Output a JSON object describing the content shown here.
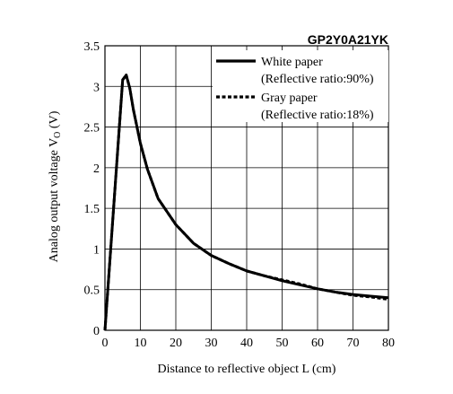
{
  "chart_data": {
    "type": "line",
    "title": "GP2Y0A21YK",
    "xlabel": "Distance to reflective object L (cm)",
    "ylabel": {
      "main": "Analog output voltage V",
      "subscript": "O",
      "unit": " (V)"
    },
    "xlim": [
      0,
      80
    ],
    "ylim": [
      0,
      3.5
    ],
    "x_ticks": [
      0,
      10,
      20,
      30,
      40,
      50,
      60,
      70,
      80
    ],
    "y_ticks": [
      0,
      0.5,
      1,
      1.5,
      2,
      2.5,
      3,
      3.5
    ],
    "x_tick_labels": [
      "0",
      "10",
      "20",
      "30",
      "40",
      "50",
      "60",
      "70",
      "80"
    ],
    "y_tick_labels": [
      "0",
      "0.5",
      "1",
      "1.5",
      "2",
      "2.5",
      "3",
      "3.5"
    ],
    "grid": true,
    "legend_placement": "top-right",
    "series": [
      {
        "name": "White paper",
        "note": "(Reflective ratio:90%)",
        "style": "solid",
        "color": "#000000",
        "points": [
          [
            0,
            0
          ],
          [
            5,
            3.08
          ],
          [
            6,
            3.14
          ],
          [
            7,
            2.98
          ],
          [
            8,
            2.72
          ],
          [
            10,
            2.3
          ],
          [
            12,
            1.98
          ],
          [
            15,
            1.62
          ],
          [
            20,
            1.3
          ],
          [
            25,
            1.07
          ],
          [
            30,
            0.92
          ],
          [
            35,
            0.82
          ],
          [
            40,
            0.73
          ],
          [
            45,
            0.67
          ],
          [
            50,
            0.61
          ],
          [
            55,
            0.56
          ],
          [
            60,
            0.51
          ],
          [
            65,
            0.47
          ],
          [
            70,
            0.44
          ],
          [
            75,
            0.42
          ],
          [
            80,
            0.4
          ]
        ]
      },
      {
        "name": "Gray paper",
        "note": "(Reflective ratio:18%)",
        "style": "dashed",
        "color": "#000000",
        "points": [
          [
            0,
            0
          ],
          [
            5,
            3.08
          ],
          [
            6,
            3.14
          ],
          [
            7,
            2.98
          ],
          [
            8,
            2.72
          ],
          [
            10,
            2.3
          ],
          [
            12,
            1.98
          ],
          [
            15,
            1.62
          ],
          [
            20,
            1.3
          ],
          [
            25,
            1.07
          ],
          [
            30,
            0.92
          ],
          [
            35,
            0.82
          ],
          [
            40,
            0.73
          ],
          [
            45,
            0.67
          ],
          [
            50,
            0.62
          ],
          [
            55,
            0.57
          ],
          [
            60,
            0.51
          ],
          [
            65,
            0.47
          ],
          [
            70,
            0.43
          ],
          [
            75,
            0.41
          ],
          [
            80,
            0.38
          ]
        ]
      }
    ]
  }
}
